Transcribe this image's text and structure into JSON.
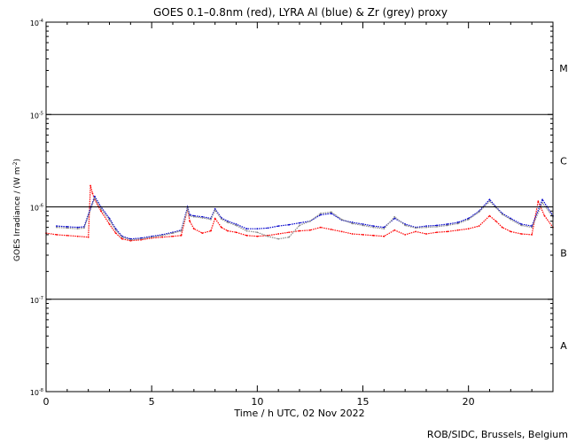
{
  "chart_data": {
    "type": "scatter",
    "title": "GOES 0.1–0.8nm (red), LYRA Al (blue) & Zr (grey) proxy",
    "xlabel": "Time / h UTC, 02 Nov 2022",
    "ylabel_parts": {
      "pre": "GOES Irradiance / (W m",
      "sup": "-2",
      "post": ")"
    },
    "credit": "ROB/SIDC, Brussels, Belgium",
    "xlim": [
      0,
      24
    ],
    "ylim": [
      1e-08,
      0.0001
    ],
    "yscale": "log",
    "x_ticks": [
      0,
      5,
      10,
      15,
      20
    ],
    "y_ticks": [
      {
        "base": "10",
        "exp": "-8",
        "value": 1e-08
      },
      {
        "base": "10",
        "exp": "-7",
        "value": 1e-07
      },
      {
        "base": "10",
        "exp": "-6",
        "value": 1e-06
      },
      {
        "base": "10",
        "exp": "-5",
        "value": 1e-05
      },
      {
        "base": "10",
        "exp": "-4",
        "value": 0.0001
      }
    ],
    "flare_class_lines": [
      1e-07,
      1e-06,
      1e-05
    ],
    "flare_classes": [
      {
        "label": "A",
        "y": 3.16e-08
      },
      {
        "label": "B",
        "y": 3.16e-07
      },
      {
        "label": "C",
        "y": 3.16e-06
      },
      {
        "label": "M",
        "y": 3.16e-05
      }
    ],
    "series": [
      {
        "key": "goes",
        "color": "#ff0000",
        "x": [
          0.0,
          0.5,
          1.0,
          1.5,
          2.0,
          2.1,
          2.2,
          2.3,
          2.6,
          3.0,
          3.3,
          3.6,
          4.0,
          4.5,
          5.0,
          5.5,
          6.0,
          6.4,
          6.7,
          6.8,
          7.0,
          7.4,
          7.8,
          8.0,
          8.3,
          8.6,
          9.0,
          9.5,
          10.0,
          10.5,
          11.0,
          11.5,
          12.0,
          12.5,
          13.0,
          13.5,
          14.0,
          14.5,
          15.0,
          15.5,
          16.0,
          16.5,
          17.0,
          17.5,
          18.0,
          18.5,
          19.0,
          19.5,
          20.0,
          20.5,
          21.0,
          21.3,
          21.6,
          22.0,
          22.5,
          23.0,
          23.3,
          23.6,
          24.0
        ],
        "y": [
          5.2e-07,
          5e-07,
          4.9e-07,
          4.8e-07,
          4.7e-07,
          1.7e-06,
          1.4e-06,
          1.2e-06,
          9e-07,
          6.5e-07,
          5.2e-07,
          4.5e-07,
          4.3e-07,
          4.4e-07,
          4.6e-07,
          4.7e-07,
          4.8e-07,
          4.9e-07,
          9.5e-07,
          7e-07,
          5.8e-07,
          5.2e-07,
          5.5e-07,
          7.5e-07,
          6e-07,
          5.5e-07,
          5.3e-07,
          4.9e-07,
          4.8e-07,
          4.9e-07,
          5.1e-07,
          5.3e-07,
          5.5e-07,
          5.6e-07,
          6e-07,
          5.7e-07,
          5.4e-07,
          5.1e-07,
          5e-07,
          4.9e-07,
          4.8e-07,
          5.6e-07,
          5e-07,
          5.4e-07,
          5.1e-07,
          5.3e-07,
          5.4e-07,
          5.6e-07,
          5.8e-07,
          6.2e-07,
          8e-07,
          7e-07,
          6e-07,
          5.4e-07,
          5.1e-07,
          5e-07,
          1.15e-06,
          8e-07,
          6e-07
        ]
      },
      {
        "key": "lyra_al",
        "color": "#0000cc",
        "x": [
          0.5,
          1.0,
          1.5,
          1.8,
          2.3,
          2.6,
          3.0,
          3.3,
          3.6,
          4.0,
          4.5,
          5.0,
          5.5,
          6.0,
          6.4,
          6.7,
          6.8,
          7.0,
          7.4,
          7.8,
          8.0,
          8.3,
          8.6,
          9.0,
          9.5,
          10.0,
          10.5,
          11.0,
          11.5,
          12.0,
          12.5,
          13.0,
          13.5,
          14.0,
          14.5,
          15.0,
          15.5,
          16.0,
          16.5,
          17.0,
          17.5,
          18.0,
          18.5,
          19.0,
          19.5,
          20.0,
          20.5,
          21.0,
          21.3,
          21.6,
          22.0,
          22.5,
          23.0,
          23.5,
          24.0
        ],
        "y": [
          6.2e-07,
          6.1e-07,
          6e-07,
          6.1e-07,
          1.3e-06,
          1e-06,
          7.5e-07,
          5.8e-07,
          4.8e-07,
          4.5e-07,
          4.6e-07,
          4.8e-07,
          5e-07,
          5.3e-07,
          5.6e-07,
          1e-06,
          8.2e-07,
          8e-07,
          7.8e-07,
          7.5e-07,
          9.5e-07,
          7.6e-07,
          7e-07,
          6.5e-07,
          5.8e-07,
          5.8e-07,
          5.9e-07,
          6.2e-07,
          6.4e-07,
          6.7e-07,
          7e-07,
          8.2e-07,
          8.5e-07,
          7.2e-07,
          6.8e-07,
          6.5e-07,
          6.2e-07,
          6e-07,
          7.5e-07,
          6.5e-07,
          6e-07,
          6.2e-07,
          6.3e-07,
          6.5e-07,
          6.8e-07,
          7.5e-07,
          9e-07,
          1.2e-06,
          1e-06,
          8.5e-07,
          7.5e-07,
          6.5e-07,
          6.2e-07,
          1.2e-06,
          8e-07
        ]
      },
      {
        "key": "lyra_zr",
        "color": "#888888",
        "x": [
          0.5,
          1.0,
          1.5,
          1.8,
          2.3,
          2.6,
          3.0,
          3.3,
          3.6,
          4.0,
          4.5,
          5.0,
          5.5,
          6.0,
          6.4,
          6.7,
          6.8,
          7.0,
          7.4,
          7.8,
          8.0,
          8.3,
          8.6,
          9.0,
          9.5,
          10.0,
          10.5,
          11.0,
          11.5,
          12.0,
          12.5,
          13.0,
          13.5,
          14.0,
          14.5,
          15.0,
          15.5,
          16.0,
          16.5,
          17.0,
          17.5,
          18.0,
          18.5,
          19.0,
          19.5,
          20.0,
          20.5,
          21.0,
          21.3,
          21.6,
          22.0,
          22.5,
          23.0,
          23.5,
          24.0
        ],
        "y": [
          6e-07,
          5.9e-07,
          5.8e-07,
          5.9e-07,
          1.25e-06,
          9.5e-07,
          7.2e-07,
          5.6e-07,
          4.7e-07,
          4.4e-07,
          4.5e-07,
          4.7e-07,
          4.9e-07,
          5.2e-07,
          5.5e-07,
          9.5e-07,
          8e-07,
          7.8e-07,
          7.6e-07,
          7.3e-07,
          9.2e-07,
          7.4e-07,
          6.8e-07,
          6.3e-07,
          5.5e-07,
          5.3e-07,
          4.8e-07,
          4.5e-07,
          4.7e-07,
          6.3e-07,
          7e-07,
          8.5e-07,
          8.8e-07,
          7.3e-07,
          6.6e-07,
          6.3e-07,
          6e-07,
          5.8e-07,
          7.8e-07,
          6.3e-07,
          5.9e-07,
          6e-07,
          6.1e-07,
          6.3e-07,
          6.6e-07,
          7.3e-07,
          8.8e-07,
          1.15e-06,
          9.8e-07,
          8.3e-07,
          7.3e-07,
          6.3e-07,
          6e-07,
          1.1e-06,
          7.8e-07
        ]
      }
    ]
  }
}
